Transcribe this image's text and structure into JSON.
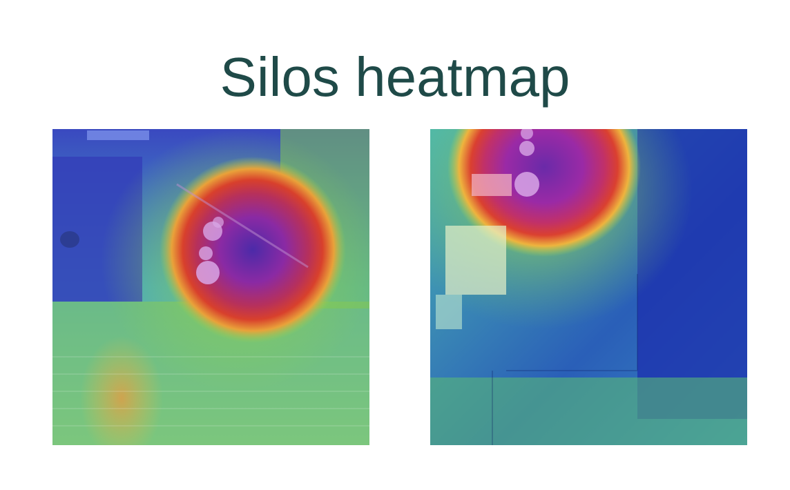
{
  "slide": {
    "title": "Silos heatmap"
  },
  "panels": [
    {
      "name": "heatmap-left",
      "hotspot": "center",
      "colors": [
        "#2c2fb8",
        "#3ab0c8",
        "#7fd04a",
        "#f2d24a",
        "#d53a2e",
        "#b02aa0"
      ]
    },
    {
      "name": "heatmap-right",
      "hotspot": "top-center",
      "colors": [
        "#1d2fb0",
        "#3ab0c8",
        "#7fd04a",
        "#f2d24a",
        "#d53a2e",
        "#b02aa0"
      ]
    }
  ]
}
